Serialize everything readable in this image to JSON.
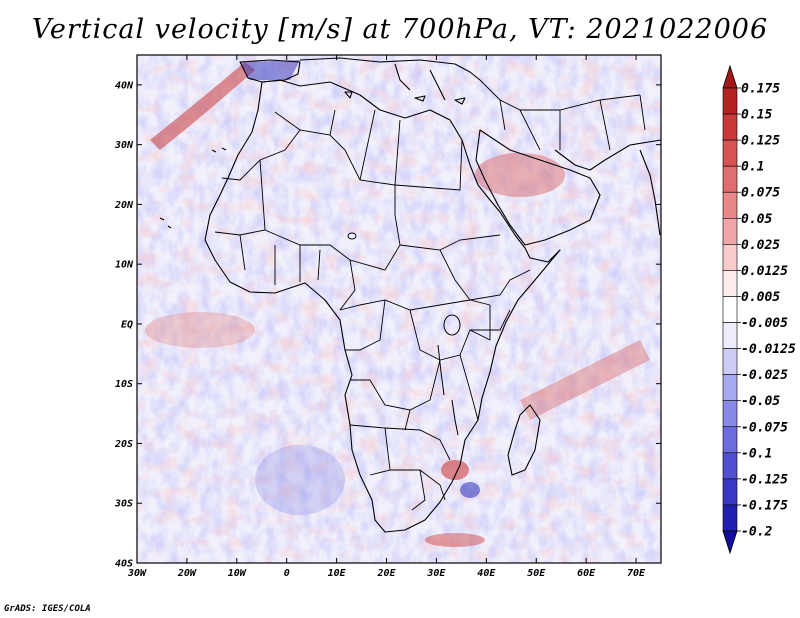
{
  "map": {
    "title": "Vertical velocity [m/s] at 700hPa, VT: 2021022006",
    "variable": "Vertical velocity",
    "units": "m/s",
    "level": "700hPa",
    "valid_time": "2021022006",
    "lat_labels": [
      "40N",
      "30N",
      "20N",
      "10N",
      "EQ",
      "10S",
      "20S",
      "30S",
      "40S"
    ],
    "lon_labels": [
      "30W",
      "20W",
      "10W",
      "0",
      "10E",
      "20E",
      "30E",
      "40E",
      "50E",
      "60E",
      "70E"
    ],
    "credit": "GrADS: IGES/COLA"
  },
  "colorbar": {
    "labels": [
      "0.175",
      "0.15",
      "0.125",
      "0.1",
      "0.075",
      "0.05",
      "0.025",
      "0.0125",
      "0.005",
      "-0.005",
      "-0.0125",
      "-0.025",
      "-0.05",
      "-0.075",
      "-0.1",
      "-0.125",
      "-0.175",
      "-0.2"
    ],
    "colors": [
      "#a01818",
      "#b52222",
      "#c93a3a",
      "#d75454",
      "#e06e6e",
      "#e98888",
      "#f0a6a6",
      "#f8cccc",
      "#fdecec",
      "#ffffff",
      "#ececfb",
      "#ccccf6",
      "#a8a8ee",
      "#8888e6",
      "#6c6cdc",
      "#5050d0",
      "#3838c2",
      "#2020b0",
      "#140ca0"
    ]
  }
}
